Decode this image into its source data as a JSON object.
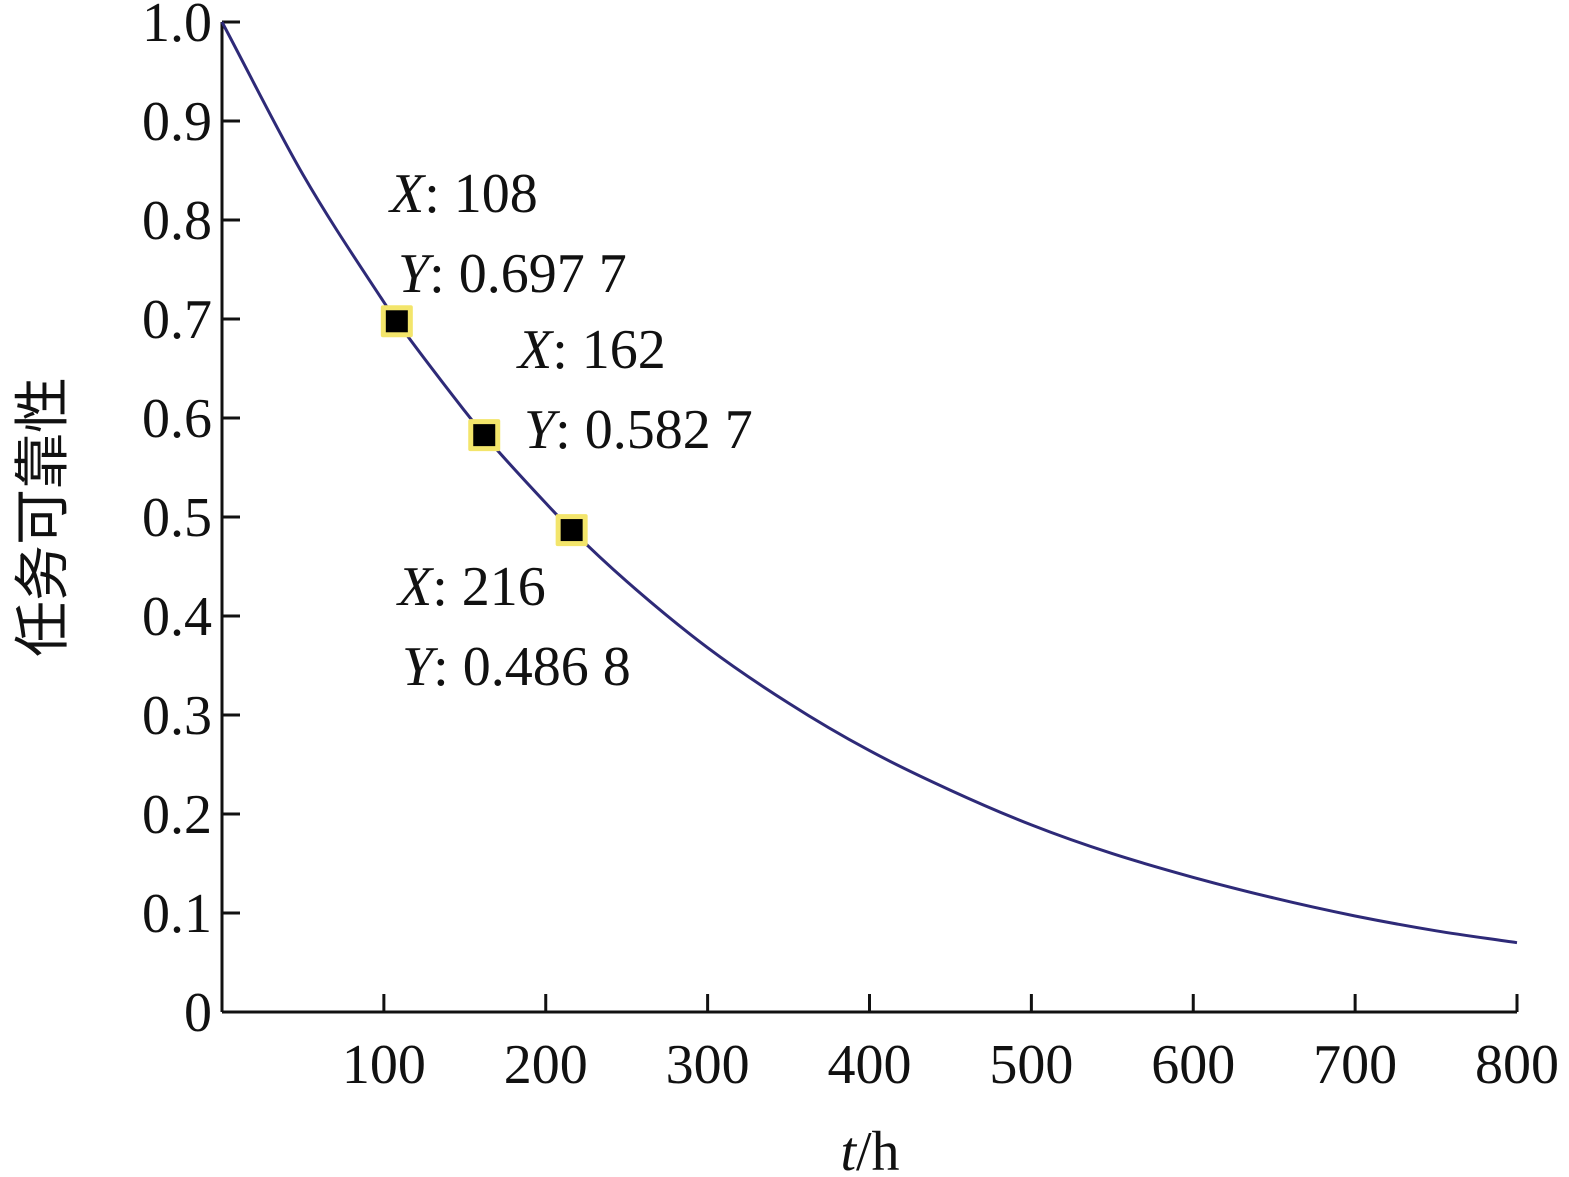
{
  "chart_data": {
    "type": "line",
    "xlabel": "t/h",
    "xlabel_var": "t",
    "xlabel_unit": "/h",
    "ylabel": "任务可靠性",
    "xlim": [
      0,
      800
    ],
    "ylim": [
      0,
      1.0
    ],
    "x_ticks": [
      100,
      200,
      300,
      400,
      500,
      600,
      700,
      800
    ],
    "x_tick_labels": [
      "100",
      "200",
      "300",
      "400",
      "500",
      "600",
      "700",
      "800"
    ],
    "y_ticks": [
      0,
      0.1,
      0.2,
      0.3,
      0.4,
      0.5,
      0.6,
      0.7,
      0.8,
      0.9,
      1.0
    ],
    "y_tick_labels": [
      "0",
      "0.1",
      "0.2",
      "0.3",
      "0.4",
      "0.5",
      "0.6",
      "0.7",
      "0.8",
      "0.9",
      "1.0"
    ],
    "grid": false,
    "series": [
      {
        "color": "#2e2a78",
        "x": [
          0,
          50,
          100,
          108,
          150,
          162,
          200,
          216,
          250,
          300,
          350,
          400,
          450,
          500,
          550,
          600,
          650,
          700,
          750,
          800
        ],
        "y": [
          1.0,
          0.846,
          0.717,
          0.6977,
          0.607,
          0.5827,
          0.514,
          0.4868,
          0.435,
          0.368,
          0.312,
          0.264,
          0.224,
          0.189,
          0.16,
          0.136,
          0.115,
          0.097,
          0.082,
          0.07
        ]
      }
    ],
    "datatips": [
      {
        "x": 108,
        "y": 0.6977,
        "x_label": "X",
        "x_text": ": 108",
        "y_label": "Y",
        "y_text": ": 0.697 7"
      },
      {
        "x": 162,
        "y": 0.5827,
        "x_label": "X",
        "x_text": ": 162",
        "y_label": "Y",
        "y_text": ": 0.582 7"
      },
      {
        "x": 216,
        "y": 0.4868,
        "x_label": "X",
        "x_text": ": 216",
        "y_label": "Y",
        "y_text": ": 0.486 8"
      }
    ],
    "marker_fill": "#000000",
    "marker_highlight": "#f3e56b"
  }
}
